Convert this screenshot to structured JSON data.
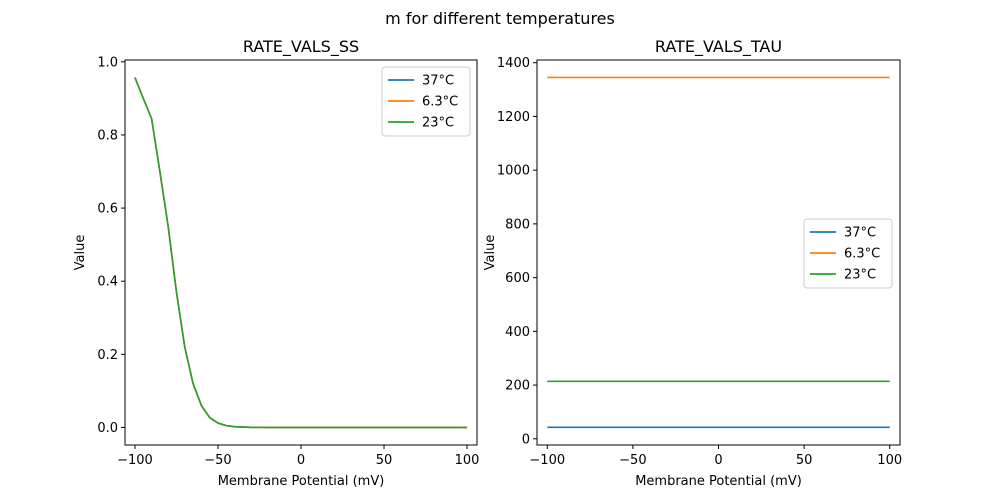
{
  "figure": {
    "suptitle": "m for different temperatures"
  },
  "colors": {
    "series_37": "#1f77b4",
    "series_6_3": "#ff7f0e",
    "series_23": "#2ca02c",
    "axes": "#000000",
    "legend_border": "#cccccc"
  },
  "chart_data": [
    {
      "type": "line",
      "title": "RATE_VALS_SS",
      "xlabel": "Membrane Potential (mV)",
      "ylabel": "Value",
      "xlim": [
        -106,
        106
      ],
      "ylim": [
        -0.048,
        1.005
      ],
      "xticks": [
        -100,
        -50,
        0,
        50,
        100
      ],
      "xtick_labels": [
        "−100",
        "−50",
        "0",
        "50",
        "100"
      ],
      "yticks": [
        0.0,
        0.2,
        0.4,
        0.6,
        0.8,
        1.0
      ],
      "ytick_labels": [
        "0.0",
        "0.2",
        "0.4",
        "0.6",
        "0.8",
        "1.0"
      ],
      "grid": false,
      "legend_position": "upper right",
      "x": [
        -100,
        -95,
        -90,
        -85,
        -80,
        -75,
        -70,
        -65,
        -60,
        -55,
        -50,
        -45,
        -40,
        -35,
        -30,
        -25,
        -20,
        -15,
        -10,
        -5,
        0,
        10,
        20,
        30,
        40,
        50,
        60,
        70,
        80,
        90,
        100
      ],
      "series": [
        {
          "name": "37°C",
          "color_key": "series_37",
          "values": [
            0.957,
            0.9,
            0.845,
            0.7,
            0.55,
            0.37,
            0.22,
            0.12,
            0.06,
            0.027,
            0.012,
            0.005,
            0.002,
            0.001,
            0.0005,
            0.0002,
            0.0001,
            0,
            0,
            0,
            0,
            0,
            0,
            0,
            0,
            0,
            0,
            0,
            0,
            0,
            0
          ]
        },
        {
          "name": "6.3°C",
          "color_key": "series_6_3",
          "values": [
            0.957,
            0.9,
            0.845,
            0.7,
            0.55,
            0.37,
            0.22,
            0.12,
            0.06,
            0.027,
            0.012,
            0.005,
            0.002,
            0.001,
            0.0005,
            0.0002,
            0.0001,
            0,
            0,
            0,
            0,
            0,
            0,
            0,
            0,
            0,
            0,
            0,
            0,
            0,
            0
          ]
        },
        {
          "name": "23°C",
          "color_key": "series_23",
          "values": [
            0.957,
            0.9,
            0.845,
            0.7,
            0.55,
            0.37,
            0.22,
            0.12,
            0.06,
            0.027,
            0.012,
            0.005,
            0.002,
            0.001,
            0.0005,
            0.0002,
            0.0001,
            0,
            0,
            0,
            0,
            0,
            0,
            0,
            0,
            0,
            0,
            0,
            0,
            0,
            0
          ]
        }
      ]
    },
    {
      "type": "line",
      "title": "RATE_VALS_TAU",
      "xlabel": "Membrane Potential (mV)",
      "ylabel": "Value",
      "xlim": [
        -106,
        106
      ],
      "ylim": [
        -23,
        1410
      ],
      "xticks": [
        -100,
        -50,
        0,
        50,
        100
      ],
      "xtick_labels": [
        "−100",
        "−50",
        "0",
        "50",
        "100"
      ],
      "yticks": [
        0,
        200,
        400,
        600,
        800,
        1000,
        1200,
        1400
      ],
      "ytick_labels": [
        "0",
        "200",
        "400",
        "600",
        "800",
        "1000",
        "1200",
        "1400"
      ],
      "grid": false,
      "legend_position": "center right",
      "x": [
        -100,
        100
      ],
      "series": [
        {
          "name": "37°C",
          "color_key": "series_37",
          "values": [
            43,
            43
          ]
        },
        {
          "name": "6.3°C",
          "color_key": "series_6_3",
          "values": [
            1345,
            1345
          ]
        },
        {
          "name": "23°C",
          "color_key": "series_23",
          "values": [
            214,
            214
          ]
        }
      ]
    }
  ]
}
